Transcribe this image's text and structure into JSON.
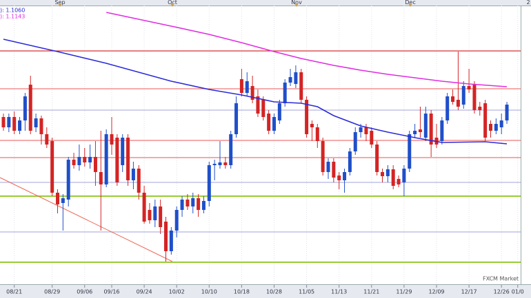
{
  "chart_data": {
    "type": "candlestick",
    "ylim": [
      1.0857,
      1.1261
    ],
    "categories": [
      null,
      null,
      "08/21",
      null,
      null,
      null,
      null,
      null,
      null,
      "08/29",
      null,
      null,
      null,
      null,
      null,
      "09/06",
      null,
      null,
      null,
      null,
      "09/16",
      null,
      null,
      null,
      null,
      null,
      "09/24",
      null,
      null,
      null,
      null,
      null,
      "10/02",
      null,
      null,
      null,
      null,
      null,
      "10/10",
      null,
      null,
      null,
      null,
      null,
      "10/18",
      null,
      null,
      null,
      null,
      null,
      "10/28",
      null,
      null,
      null,
      null,
      null,
      "11/05",
      null,
      null,
      null,
      null,
      null,
      "11/13",
      null,
      null,
      null,
      null,
      null,
      "11/21",
      null,
      null,
      null,
      null,
      null,
      "11/29",
      null,
      null,
      null,
      null,
      null,
      "12/09",
      null,
      null,
      null,
      null,
      null,
      "12/17",
      null,
      null,
      null,
      null,
      null,
      "12/26",
      null,
      null,
      "01/0"
    ],
    "open": [
      1.1099,
      1.1084,
      1.1099,
      1.1079,
      1.1094,
      1.1146,
      1.1084,
      1.1097,
      1.1074,
      1.1064,
      1.0989,
      1.0974,
      1.0979,
      1.1037,
      1.1029,
      1.1041,
      1.1033,
      1.1041,
      1.1019,
      1.1001,
      1.1074,
      1.1069,
      1.1029,
      1.1069,
      1.1007,
      1.1024,
      1.0989,
      1.0964,
      1.0949,
      1.0969,
      1.0947,
      1.0904,
      1.0934,
      1.0964,
      1.0979,
      1.0969,
      1.0981,
      1.0964,
      1.0977,
      1.1029,
      1.1029,
      1.1033,
      1.1029,
      1.1074,
      1.1154,
      1.1134,
      1.1144,
      1.1129,
      1.1124,
      1.1104,
      1.1079,
      1.1094,
      1.1119,
      1.1149,
      1.1147,
      1.1164,
      1.1124,
      1.1089,
      1.1084,
      1.1064,
      1.1019,
      1.1034,
      1.1014,
      1.1007,
      1.1019,
      1.1049,
      1.1077,
      1.1084,
      1.1079,
      1.1059,
      1.1019,
      1.1013,
      1.1023,
      1.1009,
      1.1004,
      1.1024,
      1.1074,
      1.1081,
      1.1069,
      1.1104,
      1.1069,
      1.1064,
      1.1094,
      1.1129,
      1.1124,
      1.1117,
      1.1144,
      1.1147,
      1.1114,
      1.1119,
      1.1089,
      1.1079,
      1.1084,
      1.1094,
      null,
      null
    ],
    "high": [
      1.1104,
      1.1104,
      1.1107,
      1.1099,
      1.1134,
      1.1159,
      1.1104,
      1.1101,
      1.1084,
      1.1069,
      1.0994,
      1.0987,
      1.1041,
      1.1047,
      1.1059,
      1.1054,
      1.1059,
      1.1064,
      1.1079,
      1.1081,
      1.1099,
      1.1074,
      1.1074,
      1.1074,
      1.1034,
      1.1029,
      1.0999,
      1.0974,
      1.0979,
      1.0979,
      1.0954,
      1.0939,
      1.0969,
      1.0984,
      1.0987,
      1.0989,
      1.0987,
      1.0984,
      1.1034,
      1.1037,
      1.1064,
      1.1041,
      1.1079,
      1.1129,
      1.1169,
      1.1164,
      1.1159,
      1.1139,
      1.1129,
      1.1109,
      1.1104,
      1.1124,
      1.1154,
      1.1169,
      1.1174,
      1.1169,
      1.1129,
      1.1094,
      1.1089,
      1.1069,
      1.1039,
      1.1039,
      1.1019,
      1.1024,
      1.1054,
      1.1084,
      1.1089,
      1.1089,
      1.1084,
      1.1064,
      1.1024,
      1.1029,
      1.1029,
      1.1014,
      1.1029,
      1.1079,
      1.1089,
      1.1114,
      1.1114,
      1.1109,
      1.1089,
      1.1099,
      1.1134,
      1.1139,
      1.1194,
      1.1151,
      1.1169,
      1.1151,
      1.1121,
      1.1124,
      1.1094,
      1.1097,
      1.1104,
      1.1121,
      null,
      null
    ],
    "low": [
      1.1079,
      1.1077,
      1.1074,
      1.1074,
      1.1079,
      1.1074,
      1.1077,
      1.1059,
      1.1054,
      1.0984,
      1.0959,
      1.0934,
      1.0969,
      1.1024,
      1.1021,
      1.1027,
      1.1024,
      1.0999,
      1.0934,
      1.0997,
      1.1044,
      1.0999,
      1.1019,
      1.0999,
      1.0994,
      1.0979,
      1.0944,
      1.0944,
      1.0939,
      1.0929,
      1.0889,
      1.0899,
      1.0924,
      1.0954,
      1.0964,
      1.0959,
      1.0954,
      1.0959,
      1.0969,
      1.1007,
      1.1024,
      1.1024,
      1.1024,
      1.1069,
      1.1129,
      1.1129,
      1.1119,
      1.1099,
      1.1094,
      1.1074,
      1.1074,
      1.1089,
      1.1114,
      1.1144,
      1.1141,
      1.1119,
      1.1069,
      1.1064,
      1.1054,
      1.1014,
      1.1009,
      1.1004,
      1.0994,
      1.0989,
      1.1014,
      1.1044,
      1.1069,
      1.1064,
      1.1054,
      1.1014,
      1.1004,
      1.1004,
      1.0994,
      1.0997,
      1.0984,
      1.1019,
      1.1069,
      1.1069,
      1.1064,
      1.1041,
      1.1054,
      1.1059,
      1.1089,
      1.1117,
      1.1109,
      1.1111,
      1.1134,
      1.1104,
      1.1101,
      1.1064,
      1.1069,
      1.1074,
      1.1074,
      1.1089,
      null,
      null
    ],
    "close": [
      1.1084,
      1.1099,
      1.1079,
      1.1094,
      1.1129,
      1.1079,
      1.1097,
      1.1074,
      1.1059,
      1.0989,
      1.0972,
      1.0981,
      1.1037,
      1.1029,
      1.1041,
      1.1033,
      1.1041,
      1.1019,
      1.1001,
      1.1074,
      1.1059,
      1.1004,
      1.1069,
      1.1007,
      1.1024,
      1.0989,
      1.0947,
      1.0949,
      1.0969,
      1.0939,
      1.0904,
      1.0934,
      1.0964,
      1.0979,
      1.0969,
      1.0981,
      1.0964,
      1.0977,
      1.1029,
      1.1031,
      1.1033,
      1.1029,
      1.1074,
      1.1119,
      1.1134,
      1.1151,
      1.1124,
      1.1104,
      1.1099,
      1.1079,
      1.1099,
      1.1119,
      1.1149,
      1.1157,
      1.1164,
      1.1124,
      1.1074,
      1.1084,
      1.1064,
      1.1019,
      1.1034,
      1.1011,
      1.1007,
      1.1019,
      1.1049,
      1.1077,
      1.1084,
      1.1074,
      1.1059,
      1.1019,
      1.1013,
      1.1023,
      1.0999,
      1.1001,
      1.1024,
      1.1074,
      1.1079,
      1.1077,
      1.1104,
      1.1059,
      1.1059,
      1.1094,
      1.1129,
      1.1121,
      1.1114,
      1.1144,
      1.1139,
      1.1109,
      1.1109,
      1.1069,
      1.1079,
      1.1089,
      1.1094,
      1.1117,
      null,
      null
    ],
    "up_color": "#1f4fc9",
    "down_color": "#d42424",
    "series": [
      {
        "name": "): 1.1060",
        "color": "#2a2ad8",
        "x": [
          0,
          10,
          19,
          25,
          31,
          38,
          44,
          50,
          55,
          58,
          61,
          66,
          71,
          76,
          81,
          89,
          93
        ],
        "values": [
          1.1212,
          1.1194,
          1.1177,
          1.1164,
          1.1151,
          1.1139,
          1.1131,
          1.1121,
          1.1119,
          1.1114,
          1.1101,
          1.1086,
          1.1077,
          1.1069,
          1.1062,
          1.1063,
          1.106
        ]
      },
      {
        "name": "): 1.1143",
        "color": "#e02ce0",
        "x": [
          19,
          31,
          38,
          44,
          50,
          55,
          61,
          66,
          71,
          76,
          81,
          86,
          93
        ],
        "values": [
          1.1251,
          1.1231,
          1.1219,
          1.1207,
          1.1194,
          1.1184,
          1.1174,
          1.1167,
          1.1161,
          1.1156,
          1.1151,
          1.1147,
          1.1143
        ]
      }
    ],
    "levels": [
      {
        "value": 1.1195,
        "color": "#d83030"
      },
      {
        "value": 1.114,
        "color": "#ee7777"
      },
      {
        "value": 1.1109,
        "color": "#b4b4e4"
      },
      {
        "value": 1.1065,
        "color": "#ee7777"
      },
      {
        "value": 1.104,
        "color": "#ee7777"
      },
      {
        "value": 1.1004,
        "color": "#b4b4e4"
      },
      {
        "value": 1.0984,
        "color": "#99cc33"
      },
      {
        "value": 1.0932,
        "color": "#b4b4e4"
      },
      {
        "value": 1.0888,
        "color": "#99cc33"
      }
    ],
    "trend_line": [
      1.1011,
      1.0889
    ],
    "months": [
      "Sep",
      "Oct",
      "Nov",
      "Dec",
      "2"
    ],
    "watermark": "FXCM Market"
  }
}
